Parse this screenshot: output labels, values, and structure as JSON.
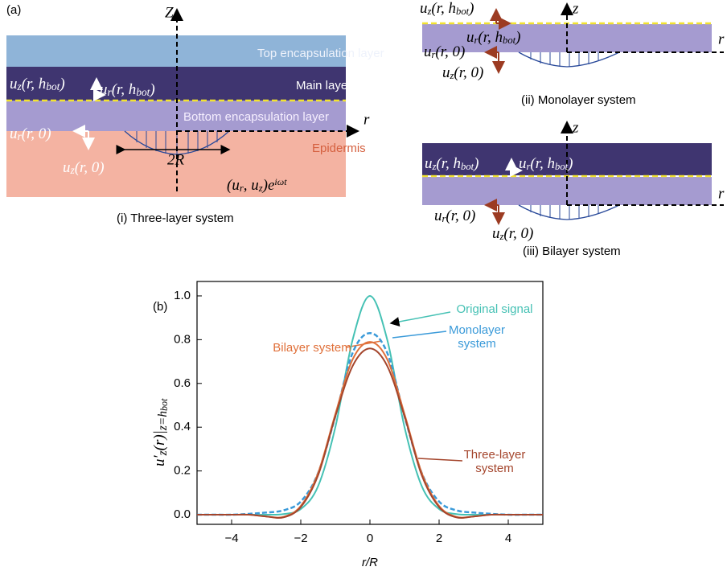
{
  "panel_a": {
    "label": "(a)",
    "three_layer": {
      "caption": "(i) Three-layer system",
      "axis_z": "Z",
      "axis_r": "r",
      "layers": [
        "Top encapsulation layer",
        "Main layer",
        "Bottom encapsulation layer",
        "Epidermis"
      ],
      "width_label": "2R",
      "labels": [
        {
          "parts": [
            "u",
            "z",
            "(r, h",
            "bot",
            ")"
          ]
        },
        {
          "parts": [
            "u",
            "r",
            "(r, h",
            "bot",
            ")"
          ]
        },
        {
          "parts": [
            "u",
            "r",
            "(r, 0)"
          ]
        },
        {
          "parts": [
            "u",
            "z",
            "(r, 0)"
          ]
        }
      ],
      "wave": {
        "parts": [
          "(u",
          "r",
          ", u",
          "z",
          ")e"
        ],
        "superscript": "iωt"
      }
    },
    "monolayer": {
      "caption": "(ii) Monolayer system",
      "axis_z": "z",
      "axis_r": "r",
      "labels": [
        {
          "parts": [
            "u",
            "z",
            "(r, h",
            "bot",
            ")"
          ]
        },
        {
          "parts": [
            "u",
            "r",
            "(r, h",
            "bot",
            ")"
          ]
        },
        {
          "parts": [
            "u",
            "r",
            "(r, 0)"
          ]
        },
        {
          "parts": [
            "u",
            "z",
            "(r, 0)"
          ]
        }
      ]
    },
    "bilayer": {
      "caption": "(iii) Bilayer system",
      "axis_z": "z",
      "axis_r": "r",
      "labels": [
        {
          "parts": [
            "u",
            "z",
            "(r, h",
            "bot",
            ")"
          ]
        },
        {
          "parts": [
            "u",
            "r",
            "(r, h",
            "bot",
            ")"
          ]
        },
        {
          "parts": [
            "u",
            "r",
            "(r, 0)"
          ]
        },
        {
          "parts": [
            "u",
            "z",
            "(r, 0)"
          ]
        }
      ]
    }
  },
  "chart_data": {
    "type": "line",
    "label": "(b)",
    "x_label": "r/R",
    "y_label": {
      "parts": [
        "u′",
        "z",
        "(r)|",
        "z=h",
        "bot"
      ]
    },
    "x": [
      -5,
      -4.5,
      -4,
      -3.5,
      -3,
      -2.5,
      -2,
      -1.5,
      -1,
      -0.5,
      0,
      0.5,
      1,
      1.5,
      2,
      2.5,
      3,
      3.5,
      4,
      4.5,
      5
    ],
    "series": [
      {
        "name": "Original signal",
        "color": "#45c1b4",
        "dashed": false,
        "values": [
          0,
          0,
          0,
          0,
          0,
          0.003,
          0.026,
          0.13,
          0.4,
          0.8,
          1.0,
          0.8,
          0.4,
          0.13,
          0.026,
          0.003,
          0,
          0,
          0,
          0,
          0
        ]
      },
      {
        "name": "Monolayer system",
        "color": "#3a9ad9",
        "dashed": true,
        "values": [
          0,
          0,
          0,
          0.004,
          0.01,
          0.02,
          0.06,
          0.19,
          0.45,
          0.74,
          0.83,
          0.74,
          0.45,
          0.19,
          0.06,
          0.02,
          0.01,
          0.004,
          0,
          0,
          0
        ]
      },
      {
        "name": "Bilayer system",
        "color": "#e0703a",
        "dashed": false,
        "values": [
          0,
          0,
          0,
          0,
          -0.008,
          -0.01,
          0.04,
          0.19,
          0.46,
          0.71,
          0.79,
          0.71,
          0.46,
          0.19,
          0.04,
          -0.01,
          -0.008,
          0,
          0,
          0,
          0
        ]
      },
      {
        "name": "Three-layer system",
        "color": "#a4452c",
        "dashed": false,
        "values": [
          0,
          0,
          0,
          0,
          -0.008,
          -0.012,
          0.035,
          0.18,
          0.45,
          0.68,
          0.76,
          0.68,
          0.45,
          0.18,
          0.035,
          -0.012,
          -0.008,
          0,
          0,
          0,
          0
        ]
      }
    ],
    "xlim": [
      -5,
      5
    ],
    "xticks": [
      {
        "value": -4,
        "label": "−4"
      },
      {
        "value": -2,
        "label": "−2"
      },
      0,
      2,
      4
    ],
    "ylim": [
      -0.044,
      1.066
    ],
    "yticks": [
      {
        "value": 0,
        "label": "0.0"
      },
      0.2,
      0.4,
      0.6,
      0.8,
      {
        "value": 1,
        "label": "1.0"
      }
    ]
  }
}
